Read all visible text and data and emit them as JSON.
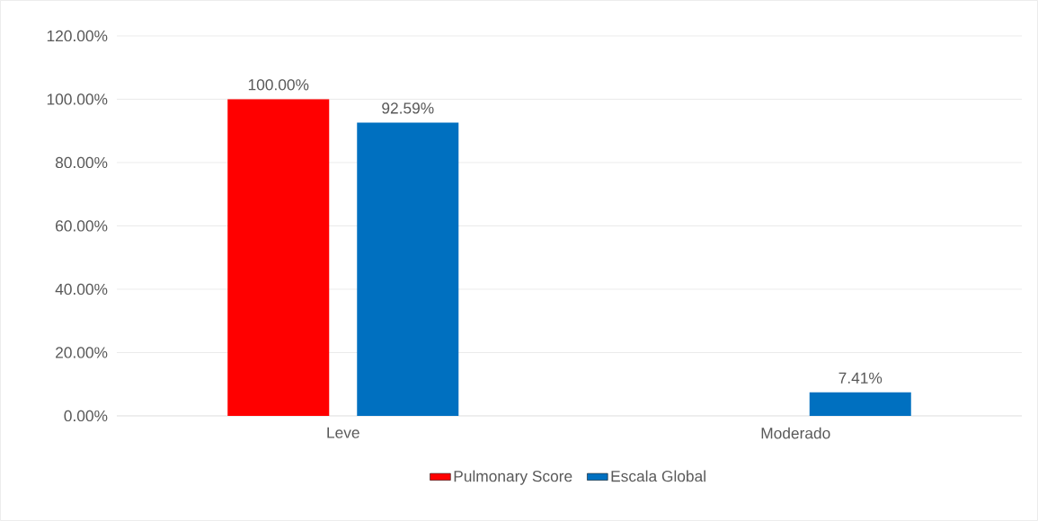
{
  "chart_data": {
    "type": "bar",
    "categories": [
      "Leve",
      "Moderado"
    ],
    "series": [
      {
        "name": "Pulmonary Score",
        "color": "#ff0000",
        "values": [
          100,
          null
        ],
        "value_labels": [
          "100.00%",
          null
        ]
      },
      {
        "name": "Escala Global",
        "color": "#0070c0",
        "values": [
          92.59,
          7.41
        ],
        "value_labels": [
          "92.59%",
          "7.41%"
        ]
      }
    ],
    "ylim": [
      0,
      120
    ],
    "yticks": [
      {
        "value": 0,
        "label": "0.00%"
      },
      {
        "value": 20,
        "label": "20.00%"
      },
      {
        "value": 40,
        "label": "40.00%"
      },
      {
        "value": 60,
        "label": "60.00%"
      },
      {
        "value": 80,
        "label": "80.00%"
      },
      {
        "value": 100,
        "label": "100.00%"
      },
      {
        "value": 120,
        "label": "120.00%"
      }
    ],
    "grid": "y",
    "legend": "bottom"
  }
}
